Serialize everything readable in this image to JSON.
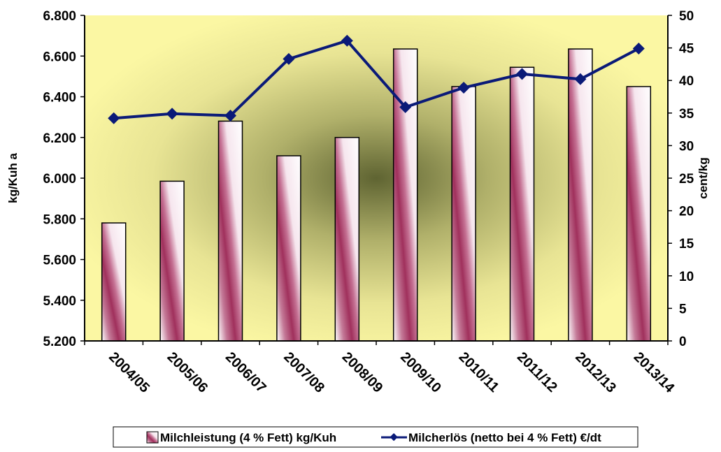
{
  "chart_data": {
    "type": "bar",
    "title": "",
    "categories": [
      "2004/05",
      "2005/06",
      "2006/07",
      "2007/08",
      "2008/09",
      "2009/10",
      "2010/11",
      "2011/12",
      "2012/13",
      "2013/14"
    ],
    "series": [
      {
        "name": "Milchleistung (4 % Fett) kg/Kuh",
        "type": "bar",
        "axis": "left",
        "values": [
          5780,
          5985,
          6280,
          6110,
          6200,
          6635,
          6450,
          6545,
          6635,
          6450
        ]
      },
      {
        "name": "Milcherlös (netto bei 4 % Fett) €/dt",
        "type": "line",
        "axis": "right",
        "values": [
          34.2,
          34.9,
          34.6,
          43.3,
          46.1,
          35.9,
          38.9,
          41.0,
          40.2,
          44.9
        ]
      }
    ],
    "ylabel": "kg/Kuh a",
    "ylabel_right": "cent/kg",
    "ylim": [
      5200,
      6800
    ],
    "ylim_right": [
      0,
      50
    ],
    "yticks": [
      "5.200",
      "5.400",
      "5.600",
      "5.800",
      "6.000",
      "6.200",
      "6.400",
      "6.600",
      "6.800"
    ],
    "yticks_right": [
      "0",
      "5",
      "10",
      "15",
      "20",
      "25",
      "30",
      "35",
      "40",
      "45",
      "50"
    ],
    "grid": false,
    "legend_position": "bottom",
    "colors": {
      "bar_dark": "#a0305c",
      "bar_light": "#ffffff",
      "line": "#0a1a78",
      "plot_bg_edge": "#fbf7a3",
      "plot_bg_center": "#5f6432"
    }
  }
}
